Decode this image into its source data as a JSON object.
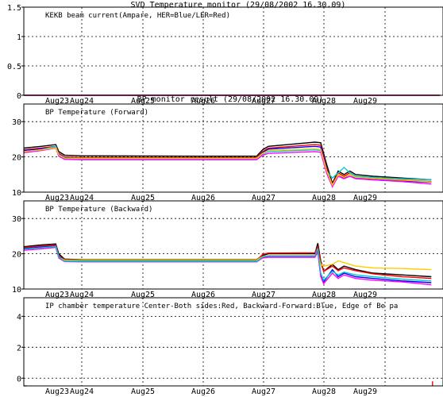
{
  "chart_data": [
    {
      "type": "line",
      "title": "SVD Temperature monitor (29/08/2002 16.30.09)",
      "panel_label": "KEKB beam current(Ampare, HER=Blue/LER=Red)",
      "x_ticks": [
        "Aug23",
        "Aug24",
        "Aug25",
        "Aug26",
        "Aug27",
        "Aug28",
        "Aug29"
      ],
      "y_ticks": [
        "0",
        "0.5",
        "1",
        "1.5"
      ],
      "ylim": [
        0,
        1.5
      ],
      "xlim": [
        0,
        7.2
      ],
      "series": [
        {
          "color": "#0000ff",
          "x": [
            0,
            7.15
          ],
          "y": [
            0,
            0
          ]
        },
        {
          "color": "#ff0000",
          "x": [
            0,
            7.15
          ],
          "y": [
            0,
            0
          ]
        }
      ]
    },
    {
      "type": "line",
      "title": "BP monitor result (29/08/2002 16.30.09)",
      "panel_label": "BP Temperature (Forward)",
      "x_ticks": [
        "Aug23",
        "Aug24",
        "Aug25",
        "Aug26",
        "Aug27",
        "Aug28",
        "Aug29"
      ],
      "y_ticks": [
        "10",
        "20",
        "30"
      ],
      "ylim": [
        10,
        35
      ],
      "xlim": [
        0,
        7.2
      ],
      "series": [
        {
          "color": "#000000",
          "x": [
            0,
            0.3,
            0.55,
            0.6,
            0.7,
            1.0,
            3.0,
            4.0,
            4.1,
            4.2,
            5.0,
            5.1,
            5.2,
            5.3,
            5.4,
            5.5,
            5.6,
            5.7,
            6.0,
            6.5,
            7.0
          ],
          "y": [
            22.5,
            23,
            23.5,
            21.5,
            20.5,
            20.3,
            20.2,
            20.2,
            22,
            23,
            24.2,
            24,
            18,
            12.5,
            16,
            15,
            16,
            15,
            14.5,
            14,
            13.5
          ]
        },
        {
          "color": "#ff0000",
          "x": [
            0,
            0.3,
            0.55,
            0.6,
            0.7,
            1.0,
            3.0,
            4.0,
            4.1,
            4.2,
            5.0,
            5.1,
            5.2,
            5.3,
            5.4,
            5.5,
            5.6,
            5.7,
            6.0,
            6.5,
            7.0
          ],
          "y": [
            22,
            22.5,
            23,
            21,
            20,
            19.8,
            19.8,
            19.8,
            21.5,
            22.5,
            23.5,
            23.3,
            17,
            12,
            15.5,
            14.5,
            15.5,
            14.5,
            14,
            13.5,
            13
          ]
        },
        {
          "color": "#0000ff",
          "x": [
            0,
            0.3,
            0.55,
            0.6,
            0.7,
            1.0,
            3.0,
            4.0,
            4.1,
            4.2,
            5.0,
            5.1,
            5.2,
            5.3,
            5.4,
            5.5,
            5.6,
            5.7,
            6.0,
            6.5,
            7.0
          ],
          "y": [
            21.8,
            22.3,
            22.8,
            20.8,
            19.8,
            19.6,
            19.6,
            19.6,
            21.2,
            22.2,
            23,
            22.8,
            16.5,
            11.8,
            15,
            14,
            15,
            14,
            13.8,
            13.2,
            12.8
          ]
        },
        {
          "color": "#00cccc",
          "x": [
            0,
            0.3,
            0.55,
            0.6,
            0.7,
            1.0,
            3.0,
            4.0,
            4.1,
            4.2,
            5.0,
            5.1,
            5.2,
            5.3,
            5.4,
            5.5,
            5.6,
            5.7,
            6.0,
            6.5,
            7.0
          ],
          "y": [
            21.5,
            22,
            23,
            20.5,
            19.6,
            19.5,
            19.5,
            19.5,
            20.8,
            21.5,
            22,
            21.8,
            16,
            14,
            15.5,
            17,
            15.5,
            14.5,
            14.2,
            13.8,
            13.5
          ]
        },
        {
          "color": "#ff00ff",
          "x": [
            0,
            0.3,
            0.55,
            0.6,
            0.7,
            1.0,
            3.0,
            4.0,
            4.1,
            4.2,
            5.0,
            5.1,
            5.2,
            5.3,
            5.4,
            5.5,
            5.6,
            5.7,
            6.0,
            6.5,
            7.0
          ],
          "y": [
            21.2,
            21.8,
            22.5,
            20.2,
            19.3,
            19.2,
            19.2,
            19.2,
            20.5,
            21,
            21.5,
            21.3,
            15.5,
            11.5,
            14.5,
            13.8,
            14.5,
            13.8,
            13.5,
            13,
            12.3
          ]
        },
        {
          "color": "#ffcc00",
          "x": [
            0,
            0.3,
            0.55,
            0.6,
            0.7,
            1.0,
            3.0,
            4.0,
            4.1,
            4.2,
            5.0,
            5.1,
            5.2,
            5.3,
            5.4,
            5.5,
            5.6,
            5.7,
            6.0,
            6.5,
            7.0
          ],
          "y": [
            21.5,
            22,
            22.6,
            20.6,
            19.7,
            19.6,
            19.6,
            19.6,
            21,
            21.8,
            22.3,
            22.1,
            16.2,
            12,
            15,
            14.2,
            15,
            14.2,
            13.9,
            13.4,
            12.9
          ]
        }
      ]
    },
    {
      "type": "line",
      "panel_label": "BP Temperature (Backward)",
      "x_ticks": [
        "Aug23",
        "Aug24",
        "Aug25",
        "Aug26",
        "Aug27",
        "Aug28",
        "Aug29"
      ],
      "y_ticks": [
        "10",
        "20",
        "30"
      ],
      "ylim": [
        10,
        35
      ],
      "xlim": [
        0,
        7.2
      ],
      "series": [
        {
          "color": "#000000",
          "x": [
            0,
            0.3,
            0.55,
            0.6,
            0.7,
            1.0,
            3.0,
            4.0,
            4.1,
            4.2,
            5.0,
            5.05,
            5.1,
            5.15,
            5.3,
            5.4,
            5.5,
            5.7,
            6.0,
            6.5,
            7.0
          ],
          "y": [
            22,
            22.5,
            22.8,
            20,
            18.5,
            18.3,
            18.3,
            18.3,
            19.5,
            20,
            20,
            23,
            18,
            15,
            17,
            15.5,
            16.5,
            15.5,
            14.5,
            14,
            13.5
          ]
        },
        {
          "color": "#ff0000",
          "x": [
            0,
            0.3,
            0.55,
            0.6,
            0.7,
            1.0,
            3.0,
            4.0,
            4.1,
            4.2,
            5.0,
            5.05,
            5.1,
            5.15,
            5.3,
            5.4,
            5.5,
            5.7,
            6.0,
            6.5,
            7.0
          ],
          "y": [
            21.8,
            22.2,
            22.5,
            19.5,
            18.3,
            18.1,
            18.1,
            18.1,
            19.8,
            20.2,
            20.3,
            22,
            17.5,
            15,
            16.5,
            15.2,
            16,
            15.2,
            14.3,
            13.5,
            13
          ]
        },
        {
          "color": "#0000ff",
          "x": [
            0,
            0.3,
            0.55,
            0.6,
            0.7,
            1.0,
            3.0,
            4.0,
            4.1,
            4.2,
            5.0,
            5.05,
            5.1,
            5.15,
            5.3,
            5.4,
            5.5,
            5.7,
            6.0,
            6.5,
            7.0
          ],
          "y": [
            21.5,
            21.9,
            22.2,
            19.2,
            18,
            17.9,
            17.9,
            17.9,
            19,
            19.3,
            19.3,
            21,
            14,
            12,
            15.5,
            13.5,
            14.5,
            13.5,
            13,
            12.3,
            11.8
          ]
        },
        {
          "color": "#ffcc00",
          "x": [
            0,
            0.3,
            0.55,
            0.6,
            0.7,
            1.0,
            3.0,
            4.0,
            4.1,
            4.2,
            5.0,
            5.05,
            5.1,
            5.15,
            5.3,
            5.4,
            5.5,
            5.7,
            6.0,
            6.5,
            7.0
          ],
          "y": [
            21.2,
            21.6,
            22,
            19,
            18.2,
            18.2,
            18.2,
            18.2,
            19.2,
            19.5,
            19.5,
            20,
            17,
            16.5,
            17,
            18,
            17.5,
            16.5,
            16,
            15.8,
            15.5
          ]
        },
        {
          "color": "#ff00ff",
          "x": [
            0,
            0.3,
            0.55,
            0.6,
            0.7,
            1.0,
            3.0,
            4.0,
            4.1,
            4.2,
            5.0,
            5.05,
            5.1,
            5.15,
            5.3,
            5.4,
            5.5,
            5.7,
            6.0,
            6.5,
            7.0
          ],
          "y": [
            21,
            21.4,
            21.8,
            18.8,
            17.8,
            17.7,
            17.7,
            17.7,
            18.8,
            19,
            19,
            20.5,
            13.5,
            11.5,
            14.5,
            13,
            14,
            13,
            12.5,
            12,
            11.2
          ]
        },
        {
          "color": "#00cccc",
          "x": [
            0,
            0.3,
            0.55,
            0.6,
            0.7,
            1.0,
            3.0,
            4.0,
            4.1,
            4.2,
            5.0,
            5.05,
            5.1,
            5.15,
            5.3,
            5.4,
            5.5,
            5.7,
            6.0,
            6.5,
            7.0
          ],
          "y": [
            21.3,
            21.7,
            22.1,
            19.1,
            17.9,
            17.8,
            17.8,
            17.8,
            19.1,
            19.4,
            19.4,
            21.5,
            14.5,
            12.5,
            15,
            14,
            14.8,
            14,
            13.5,
            12.8,
            12.3
          ]
        }
      ]
    },
    {
      "type": "line",
      "panel_label": "IP chamber temperature Center-Both sides:Red, Backward-Forward:Blue, Edge of Be pa",
      "x_ticks": [
        "Aug23",
        "Aug24",
        "Aug25",
        "Aug26",
        "Aug27",
        "Aug28",
        "Aug29"
      ],
      "y_ticks": [
        "0",
        "2",
        "4"
      ],
      "ylim": [
        -0.5,
        5.2
      ],
      "xlim": [
        0,
        7.2
      ],
      "series": [
        {
          "color": "#ff0000",
          "x": [
            7.02,
            7.02
          ],
          "y": [
            -0.5,
            -0.2
          ]
        },
        {
          "color": "#00aa00",
          "x": [
            0,
            0.05
          ],
          "y": [
            -0.5,
            -0.5
          ]
        }
      ]
    }
  ]
}
